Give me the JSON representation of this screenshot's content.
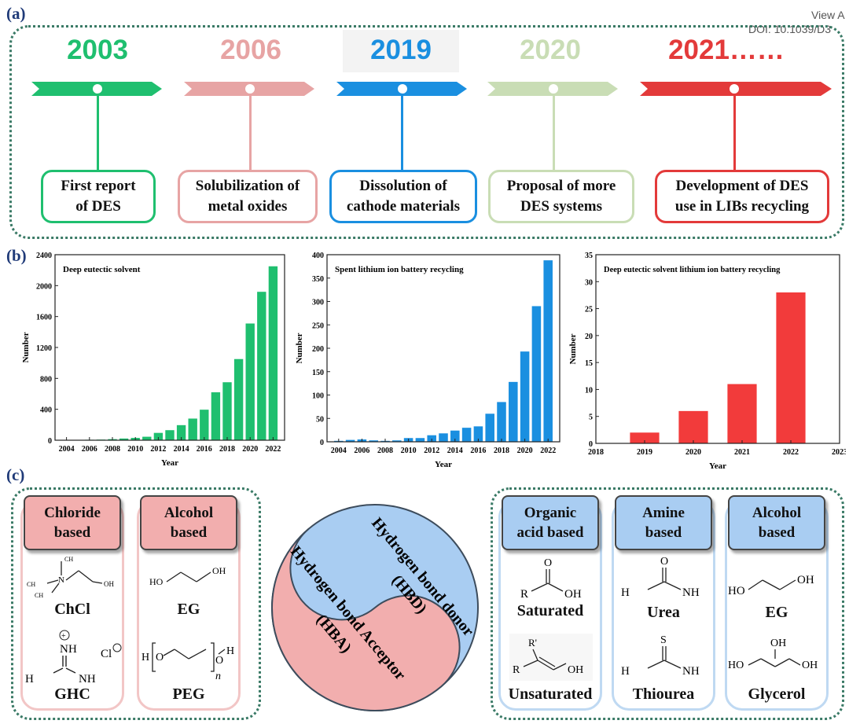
{
  "panels": {
    "a": "(a)",
    "b": "(b)",
    "c": "(c)"
  },
  "header": {
    "view_link": "View A",
    "doi": "DOI: 10.1039/D3"
  },
  "timeline": [
    {
      "year": "2003",
      "text": "First report\nof DES",
      "color": "#1fbf6f"
    },
    {
      "year": "2006",
      "text": "Solubilization of\nmetal oxides",
      "color": "#e7a4a4"
    },
    {
      "year": "2019",
      "text": "Dissolution of\ncathode materials",
      "color": "#1a8fe0"
    },
    {
      "year": "2020",
      "text": "Proposal of more\nDES systems",
      "color": "#c9ddb5"
    },
    {
      "year": "2021……",
      "text": "Development of DES\nuse in LIBs recycling",
      "color": "#e33a3a"
    }
  ],
  "chart_data": [
    {
      "type": "bar",
      "title": "Deep eutectic solvent",
      "xlabel": "Year",
      "ylabel": "Number",
      "x": [
        2004,
        2005,
        2006,
        2007,
        2008,
        2009,
        2010,
        2011,
        2012,
        2013,
        2014,
        2015,
        2016,
        2017,
        2018,
        2019,
        2020,
        2021,
        2022
      ],
      "values": [
        2,
        4,
        6,
        8,
        14,
        22,
        30,
        45,
        95,
        130,
        195,
        280,
        395,
        620,
        750,
        1050,
        1510,
        1920,
        2250
      ],
      "xticks": [
        "2004",
        "2006",
        "2008",
        "2010",
        "2012",
        "2014",
        "2016",
        "2018",
        "2020",
        "2022"
      ],
      "yticks": [
        "0",
        "400",
        "800",
        "1200",
        "1600",
        "2000",
        "2400"
      ],
      "ylim": [
        0,
        2400
      ],
      "xlim": [
        2003,
        2023
      ],
      "color": "#1fbf6f"
    },
    {
      "type": "bar",
      "title": "Spent lithium ion battery recycling",
      "xlabel": "Year",
      "ylabel": "Number",
      "x": [
        2004,
        2005,
        2006,
        2007,
        2008,
        2009,
        2010,
        2011,
        2012,
        2013,
        2014,
        2015,
        2016,
        2017,
        2018,
        2019,
        2020,
        2021,
        2022
      ],
      "values": [
        2,
        4,
        5,
        3,
        2,
        3,
        8,
        8,
        14,
        18,
        24,
        30,
        33,
        60,
        85,
        128,
        193,
        290,
        388
      ],
      "xticks": [
        "2004",
        "2006",
        "2008",
        "2010",
        "2012",
        "2014",
        "2016",
        "2018",
        "2020",
        "2022"
      ],
      "yticks": [
        "0",
        "50",
        "100",
        "150",
        "200",
        "250",
        "300",
        "350",
        "400"
      ],
      "ylim": [
        0,
        400
      ],
      "xlim": [
        2003,
        2023
      ],
      "color": "#1a8fe0"
    },
    {
      "type": "bar",
      "title": "Deep eutectic solvent lithium ion battery recycling",
      "xlabel": "Year",
      "ylabel": "Number",
      "x": [
        2019,
        2020,
        2021,
        2022
      ],
      "values": [
        2,
        6,
        11,
        28
      ],
      "xticks": [
        "2018",
        "2019",
        "2020",
        "2021",
        "2022",
        "2023"
      ],
      "yticks": [
        "0",
        "5",
        "10",
        "15",
        "20",
        "25",
        "30",
        "35"
      ],
      "ylim": [
        0,
        35
      ],
      "xlim": [
        2018,
        2023
      ],
      "color": "#f23b3b"
    }
  ],
  "hba": {
    "title": "Hydrogen bond Acceptor",
    "abbr": "(HBA)",
    "groups": [
      {
        "head": "Chloride\nbased",
        "items": [
          "ChCl",
          "GHC"
        ]
      },
      {
        "head": "Alcohol\nbased",
        "items": [
          "EG",
          "PEG"
        ]
      }
    ]
  },
  "hbd": {
    "title": "Hydrogen bond donor",
    "abbr": "(HBD)",
    "groups": [
      {
        "head": "Organic\nacid based",
        "items": [
          "Saturated",
          "Unsaturated"
        ]
      },
      {
        "head": "Amine\nbased",
        "items": [
          "Urea",
          "Thiourea"
        ]
      },
      {
        "head": "Alcohol\nbased",
        "items": [
          "EG",
          "Glycerol"
        ]
      }
    ]
  },
  "structure_labels": {
    "ch3": "CH",
    "sub3": "3",
    "n_plus": "N",
    "oh": "OH",
    "ho": "HO",
    "nh2": "NH",
    "h2n": "H",
    "cl": "Cl",
    "h": "H",
    "o": "O",
    "n_sub": "n",
    "r": "R",
    "r_prime": "R'",
    "s": "S",
    "n_letter": "N"
  },
  "colors": {
    "hba": "#f2aeae",
    "hbd": "#a9cdf2",
    "frame": "#3a7a66",
    "label": "#1f3a78"
  }
}
